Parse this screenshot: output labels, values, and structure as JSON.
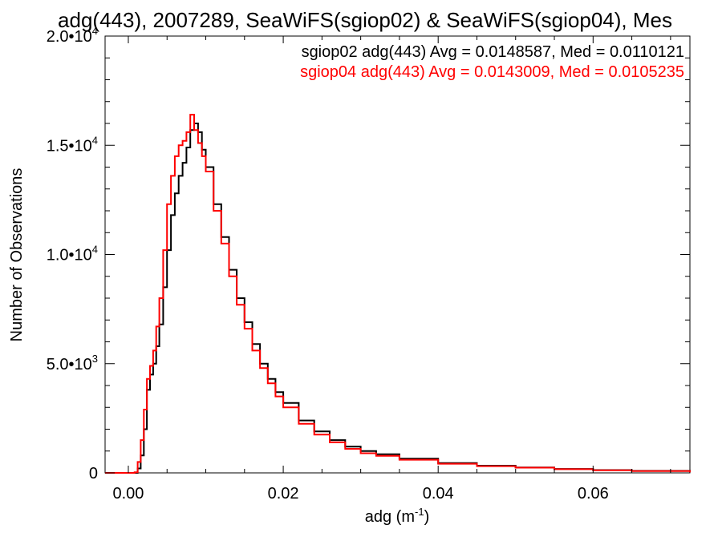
{
  "chart_data": {
    "type": "line",
    "title": "adg(443), 2007289, SeaWiFS(sgiop02) & SeaWiFS(sgiop04), Mes",
    "xlabel": "adg (m",
    "xlabel_sup": "-1",
    "xlabel_end": ")",
    "ylabel": "Number of Observations",
    "xlim": [
      -0.003,
      0.0725
    ],
    "ylim": [
      0,
      20000
    ],
    "xticks": [
      {
        "value": 0.0,
        "label": "0.00"
      },
      {
        "value": 0.02,
        "label": "0.02"
      },
      {
        "value": 0.04,
        "label": "0.04"
      },
      {
        "value": 0.06,
        "label": "0.06"
      }
    ],
    "yticks": [
      {
        "value": 0,
        "mant": "0",
        "sup": ""
      },
      {
        "value": 5000,
        "mant": "5.0•10",
        "sup": "3"
      },
      {
        "value": 10000,
        "mant": "1.0•10",
        "sup": "4"
      },
      {
        "value": 15000,
        "mant": "1.5•10",
        "sup": "4"
      },
      {
        "value": 20000,
        "mant": "2.0•10",
        "sup": "4"
      }
    ],
    "x": [
      -0.003,
      0.0008,
      0.0012,
      0.0016,
      0.002,
      0.0024,
      0.0028,
      0.0032,
      0.0036,
      0.004,
      0.0045,
      0.005,
      0.0055,
      0.006,
      0.0065,
      0.007,
      0.0075,
      0.008,
      0.0085,
      0.009,
      0.0095,
      0.01,
      0.011,
      0.012,
      0.013,
      0.014,
      0.015,
      0.016,
      0.017,
      0.018,
      0.019,
      0.02,
      0.022,
      0.024,
      0.026,
      0.028,
      0.03,
      0.032,
      0.035,
      0.04,
      0.045,
      0.05,
      0.055,
      0.06,
      0.065,
      0.0725
    ],
    "series": [
      {
        "name": "sgiop02",
        "color": "#000000",
        "legend": "sgiop02 adg(443) Avg = 0.0148587, Med = 0.0110121",
        "values": [
          0,
          0,
          200,
          800,
          2000,
          3800,
          4500,
          5000,
          5800,
          6800,
          8500,
          10200,
          11800,
          12800,
          13600,
          14200,
          14900,
          15700,
          16000,
          15600,
          14800,
          14000,
          12300,
          10800,
          9300,
          8000,
          6900,
          5900,
          5000,
          4300,
          3700,
          3200,
          2400,
          1900,
          1500,
          1200,
          1000,
          850,
          650,
          450,
          330,
          250,
          180,
          130,
          90,
          40
        ]
      },
      {
        "name": "sgiop04",
        "color": "#ff0000",
        "legend": "sgiop04 adg(443) Avg = 0.0143009, Med = 0.0105235",
        "values": [
          0,
          30,
          500,
          1500,
          2900,
          4300,
          4900,
          5600,
          6700,
          8000,
          10200,
          12300,
          13600,
          14500,
          15000,
          15200,
          15600,
          16400,
          15700,
          15100,
          14500,
          13800,
          12000,
          10500,
          9000,
          7700,
          6600,
          5600,
          4800,
          4100,
          3500,
          3000,
          2250,
          1750,
          1400,
          1100,
          900,
          780,
          600,
          420,
          310,
          240,
          170,
          120,
          80,
          30
        ]
      }
    ],
    "grid": false,
    "legend_position": "top-right"
  }
}
